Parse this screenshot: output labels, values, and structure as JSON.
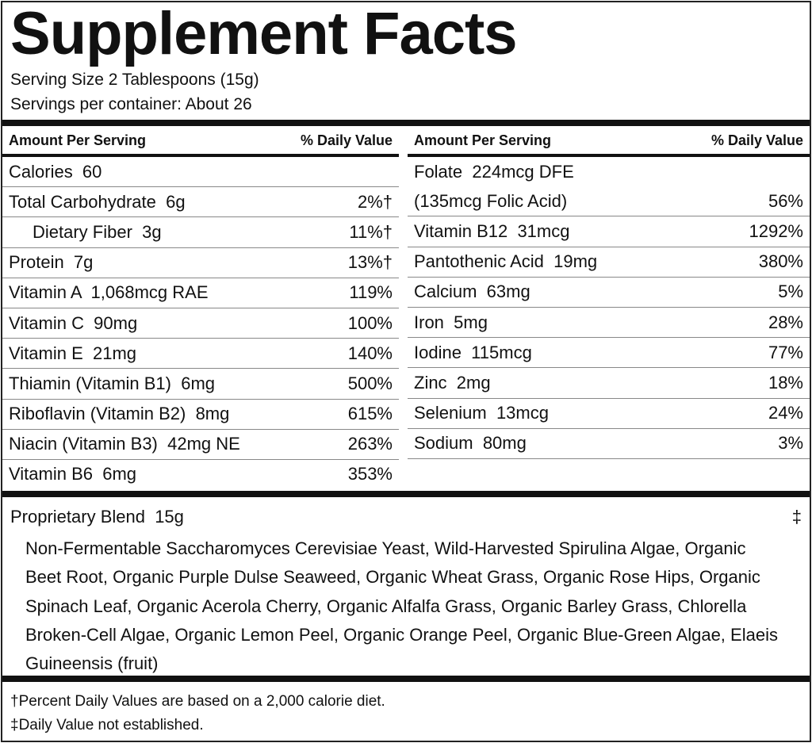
{
  "header": {
    "title": "Supplement Facts",
    "serving_size": "Serving Size 2 Tablespoons (15g)",
    "servings_per_container": "Servings per container: About 26"
  },
  "table": {
    "columns": [
      {
        "amount_header": "Amount Per Serving",
        "dv_header": "% Daily Value",
        "rows": [
          {
            "label": "Calories  60"
          },
          {
            "label": "Total Carbohydrate  6g",
            "dv": "2%†"
          },
          {
            "label": "Dietary Fiber  3g",
            "dv": "11%†"
          },
          {
            "label": "Protein  7g",
            "dv": "13%†"
          },
          {
            "label": "Vitamin A  1,068mcg RAE",
            "dv": "119%"
          },
          {
            "label": "Vitamin C  90mg",
            "dv": "100%"
          },
          {
            "label": "Vitamin E  21mg",
            "dv": "140%"
          },
          {
            "label": "Thiamin (Vitamin B1)  6mg",
            "dv": "500%"
          },
          {
            "label": "Riboflavin (Vitamin B2)  8mg",
            "dv": "615%"
          },
          {
            "label": "Niacin (Vitamin B3)  42mg NE",
            "dv": "263%"
          },
          {
            "label": "Vitamin B6  6mg",
            "dv": "353%"
          }
        ]
      },
      {
        "amount_header": "Amount Per Serving",
        "dv_header": "% Daily Value",
        "rows": [
          {
            "label": "Folate  224mcg DFE"
          },
          {
            "label": "(135mcg Folic Acid)",
            "dv": "56%"
          },
          {
            "label": "Vitamin B12  31mcg",
            "dv": "1292%"
          },
          {
            "label": "Pantothenic Acid  19mg",
            "dv": "380%"
          },
          {
            "label": "Calcium  63mg",
            "dv": "5%"
          },
          {
            "label": "Iron  5mg",
            "dv": "28%"
          },
          {
            "label": "Iodine  115mcg",
            "dv": "77%"
          },
          {
            "label": "Zinc  2mg",
            "dv": "18%"
          },
          {
            "label": "Selenium  13mcg",
            "dv": "24%"
          },
          {
            "label": "Sodium  80mg",
            "dv": "3%"
          }
        ]
      }
    ]
  },
  "blend": {
    "name": "Proprietary Blend  15g",
    "dv": "‡",
    "ingredients": "Non-Fermentable Saccharomyces Cerevisiae Yeast, Wild-Harvested Spirulina Algae, Organic Beet Root, Organic Purple Dulse Seaweed, Organic Wheat Grass, Organic Rose Hips, Organic Spinach Leaf, Organic Acerola Cherry, Organic Alfalfa Grass, Organic Barley Grass, Chlorella Broken-Cell Algae, Organic Lemon Peel, Organic Orange Peel, Organic Blue-Green Algae, Elaeis Guineensis (fruit)"
  },
  "footnotes": [
    "†Percent Daily Values are based on a 2,000 calorie diet.",
    "‡Daily Value not established."
  ]
}
